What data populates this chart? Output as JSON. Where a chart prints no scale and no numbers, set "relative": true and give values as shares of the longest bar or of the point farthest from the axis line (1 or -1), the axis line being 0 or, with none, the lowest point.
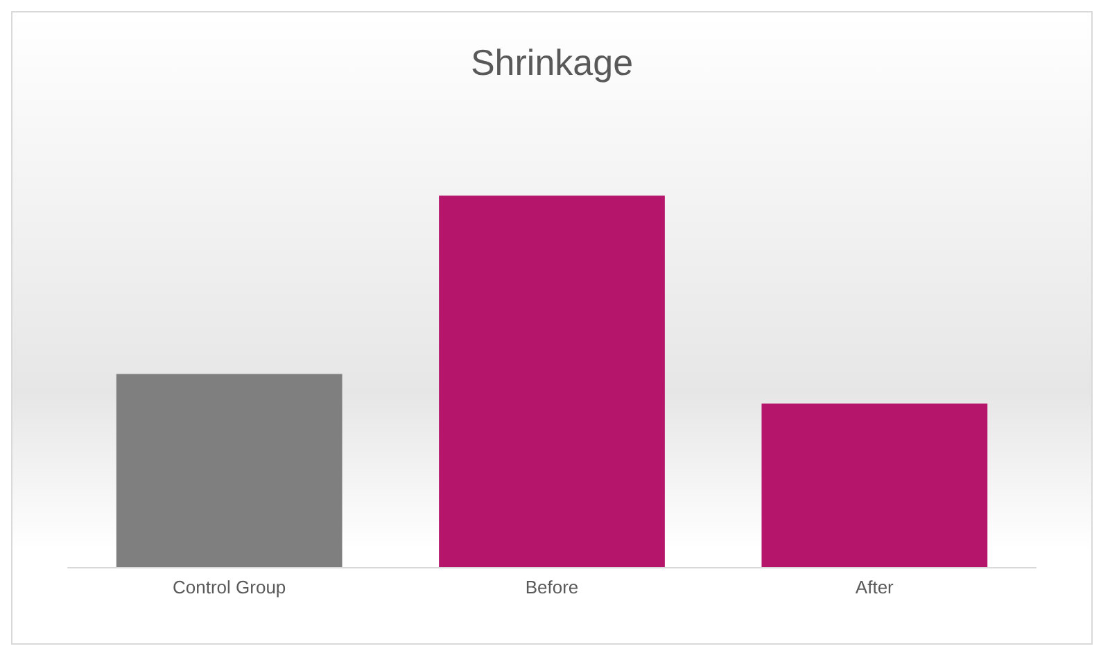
{
  "chart_data": {
    "type": "bar",
    "title": "Shrinkage",
    "relative": true,
    "categories": [
      "Control Group",
      "Before",
      "After"
    ],
    "values": [
      0.52,
      1,
      0.44
    ],
    "colors": [
      "#7f7f7f",
      "#b5156b",
      "#b5156b"
    ]
  }
}
